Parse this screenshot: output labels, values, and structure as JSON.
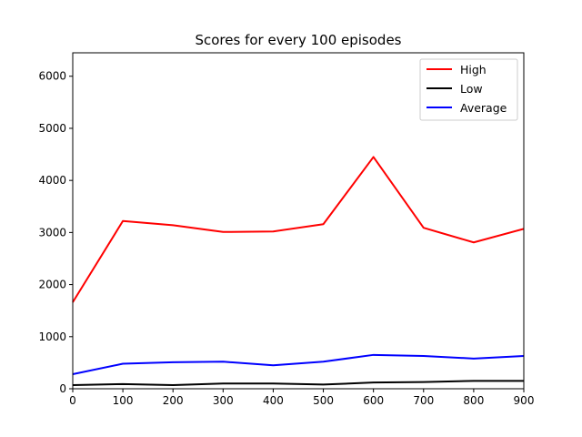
{
  "chart_data": {
    "type": "line",
    "title": "Scores for every 100 episodes",
    "xlabel": "",
    "ylabel": "",
    "x": [
      0,
      100,
      200,
      300,
      400,
      500,
      600,
      700,
      800,
      900
    ],
    "xlim": [
      0,
      900
    ],
    "ylim": [
      0,
      6450
    ],
    "xticks": [
      0,
      100,
      200,
      300,
      400,
      500,
      600,
      700,
      800,
      900
    ],
    "yticks": [
      0,
      1000,
      2000,
      3000,
      4000,
      5000,
      6000
    ],
    "grid": false,
    "legend_position": "top-right",
    "series": [
      {
        "name": "High",
        "color": "#ff0000",
        "values": [
          1660,
          3220,
          3140,
          3010,
          3020,
          3160,
          4450,
          3090,
          2810,
          3070
        ]
      },
      {
        "name": "Low",
        "color": "#000000",
        "values": [
          70,
          90,
          70,
          100,
          100,
          80,
          120,
          130,
          150,
          150
        ]
      },
      {
        "name": "Average",
        "color": "#0000ff",
        "values": [
          280,
          480,
          510,
          520,
          450,
          520,
          650,
          630,
          580,
          630
        ]
      }
    ]
  }
}
